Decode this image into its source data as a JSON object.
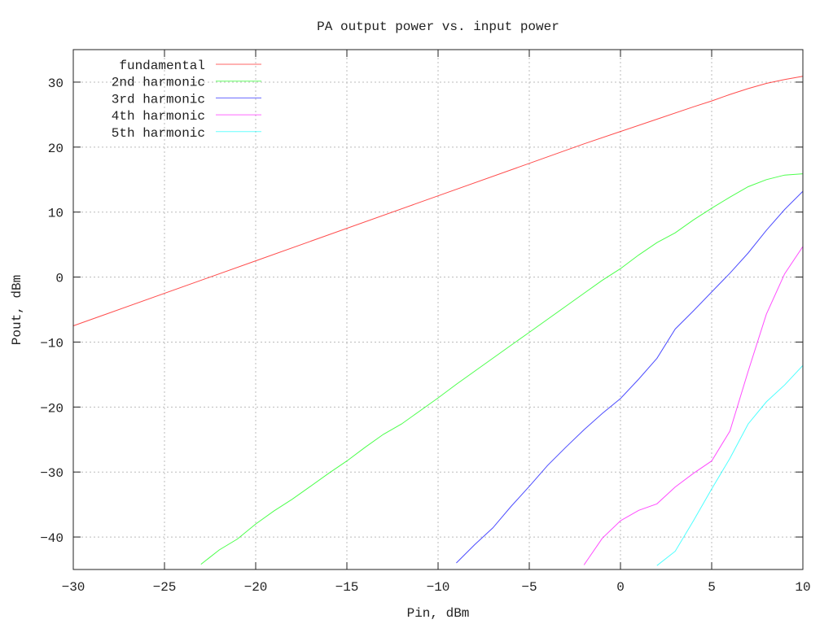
{
  "chart_data": {
    "type": "line",
    "title": "PA output power vs. input power",
    "xlabel": "Pin, dBm",
    "ylabel": "Pout, dBm",
    "xlim": [
      -30,
      10
    ],
    "ylim": [
      -45,
      35
    ],
    "xticks": [
      -30,
      -25,
      -20,
      -15,
      -10,
      -5,
      0,
      5,
      10
    ],
    "yticks": [
      -40,
      -30,
      -20,
      -10,
      0,
      10,
      20,
      30
    ],
    "grid": true,
    "legend_position": "top-left",
    "series": [
      {
        "name": "fundamental",
        "color": "#ff0000",
        "x": [
          -30,
          -20,
          -10,
          -5,
          -2,
          0,
          2,
          4,
          5,
          6,
          7,
          8,
          9,
          10
        ],
        "y": [
          -7.5,
          2.5,
          12.5,
          17.5,
          20.5,
          22.4,
          24.3,
          26.2,
          27.1,
          28.1,
          29,
          29.8,
          30.4,
          30.9
        ]
      },
      {
        "name": "2nd harmonic",
        "color": "#00ff00",
        "x": [
          -23,
          -22,
          -21,
          -20,
          -19,
          -18,
          -17,
          -16,
          -15,
          -14,
          -13,
          -12,
          -11,
          -10,
          -9,
          -8,
          -7,
          -6,
          -5,
          -4,
          -3,
          -2,
          -1,
          0,
          1,
          2,
          3,
          4,
          5,
          6,
          7,
          8,
          9,
          10
        ],
        "y": [
          -44.2,
          -42,
          -40.3,
          -38,
          -36,
          -34.2,
          -32.2,
          -30.2,
          -28.3,
          -26.2,
          -24.2,
          -22.6,
          -20.6,
          -18.6,
          -16.5,
          -14.5,
          -12.5,
          -10.5,
          -8.5,
          -6.5,
          -4.5,
          -2.5,
          -0.5,
          1.3,
          3.4,
          5.3,
          6.8,
          8.8,
          10.6,
          12.3,
          13.9,
          15,
          15.7,
          15.9
        ]
      },
      {
        "name": "3rd harmonic",
        "color": "#0000ff",
        "x": [
          -9,
          -8,
          -7,
          -6,
          -5,
          -4,
          -3,
          -2,
          -1,
          0,
          1,
          2,
          3,
          4,
          5,
          6,
          7,
          8,
          9,
          10
        ],
        "y": [
          -44,
          -41.2,
          -38.6,
          -35.3,
          -32.2,
          -29,
          -26.2,
          -23.5,
          -21,
          -18.7,
          -15.7,
          -12.5,
          -8,
          -5.2,
          -2.3,
          0.6,
          3.7,
          7.2,
          10.4,
          13.2
        ]
      },
      {
        "name": "4th harmonic",
        "color": "#ff00ff",
        "x": [
          -2,
          -1,
          0,
          1,
          2,
          3,
          4,
          5,
          6,
          7,
          8,
          9,
          10
        ],
        "y": [
          -44.3,
          -40.2,
          -37.5,
          -35.9,
          -34.9,
          -32.3,
          -30.2,
          -28.3,
          -23.7,
          -14.5,
          -5.7,
          0.5,
          4.7
        ]
      },
      {
        "name": "5th harmonic",
        "color": "#00ffff",
        "x": [
          2,
          3,
          4,
          5,
          6,
          7,
          8,
          9,
          10
        ],
        "y": [
          -44.4,
          -42.2,
          -37.5,
          -32.6,
          -27.9,
          -22.6,
          -19.2,
          -16.6,
          -13.6
        ]
      }
    ]
  }
}
